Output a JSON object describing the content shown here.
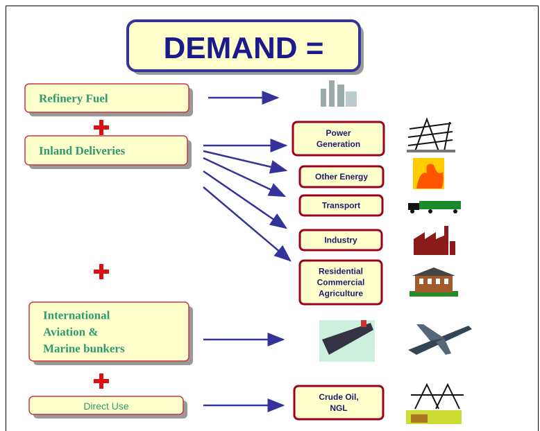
{
  "title": "DEMAND =",
  "sources": [
    {
      "lines": [
        "Refinery Fuel"
      ]
    },
    {
      "lines": [
        "Inland Deliveries"
      ]
    },
    {
      "lines": [
        "International",
        "Aviation &",
        "Marine bunkers"
      ]
    },
    {
      "lines": [
        "Direct Use"
      ]
    }
  ],
  "uses": [
    {
      "lines": [
        "Power",
        "Generation"
      ]
    },
    {
      "lines": [
        "Other Energy"
      ]
    },
    {
      "lines": [
        "Transport"
      ]
    },
    {
      "lines": [
        "Industry"
      ]
    },
    {
      "lines": [
        "Residential",
        "Commercial",
        "Agriculture"
      ]
    },
    {
      "lines": [
        "Crude Oil,",
        "NGL"
      ]
    }
  ]
}
